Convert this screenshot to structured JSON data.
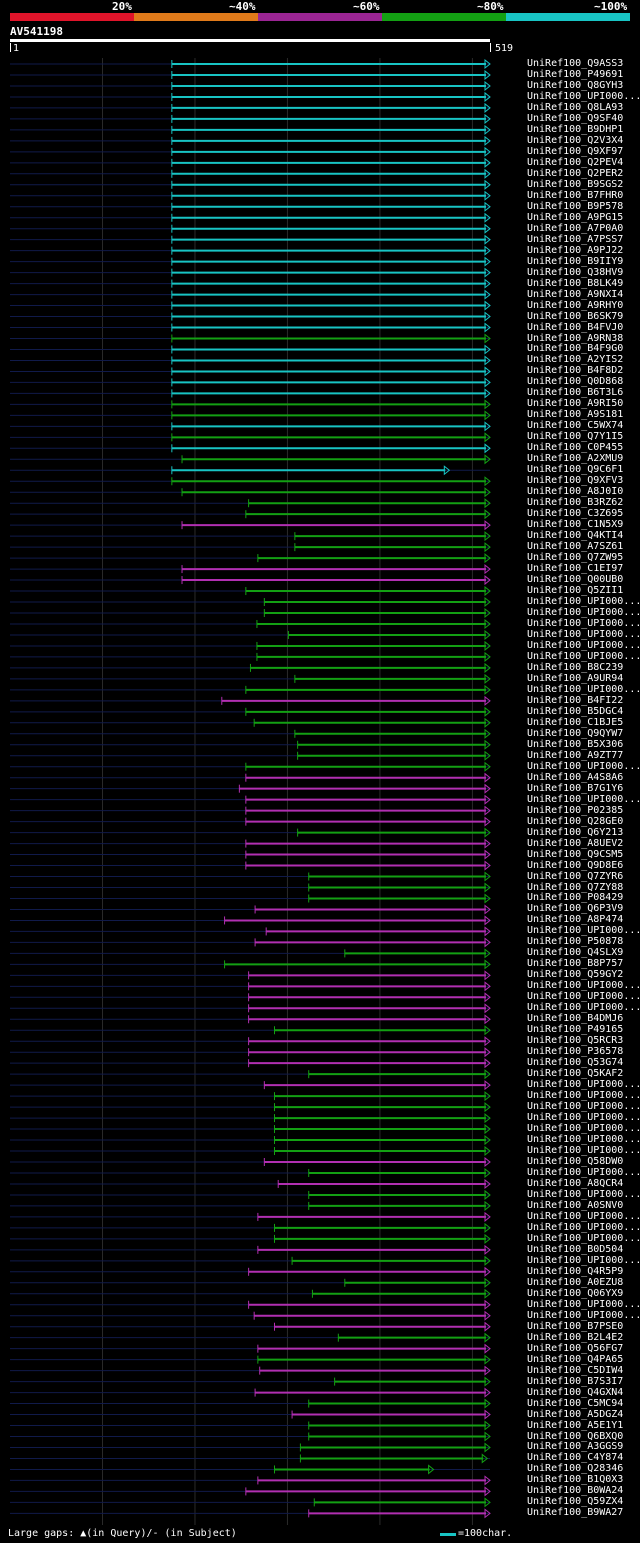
{
  "legend": {
    "labels": [
      "20%",
      "~40%",
      "~60%",
      "~80%",
      "~100%"
    ],
    "colors": [
      "#e0142a",
      "#e07a1a",
      "#9b2594",
      "#13a013",
      "#18c4c4"
    ]
  },
  "query": {
    "id": "AV541198",
    "start": "1",
    "end": "519",
    "length": 519
  },
  "footer": {
    "gaps_text": "Large gaps: ▲(in Query)/- (in Subject)",
    "scale_text": "=100char."
  },
  "hits": [
    {
      "label": "UniRef100_Q9ASS3",
      "start": 175,
      "end": 519,
      "color": "cyan"
    },
    {
      "label": "UniRef100_P49691",
      "start": 175,
      "end": 519,
      "color": "cyan"
    },
    {
      "label": "UniRef100_Q8GYH3",
      "start": 175,
      "end": 519,
      "color": "cyan"
    },
    {
      "label": "UniRef100_UPI000...",
      "start": 175,
      "end": 519,
      "color": "cyan"
    },
    {
      "label": "UniRef100_Q8LA93",
      "start": 175,
      "end": 519,
      "color": "cyan"
    },
    {
      "label": "UniRef100_Q9SF40",
      "start": 175,
      "end": 519,
      "color": "cyan"
    },
    {
      "label": "UniRef100_B9DHP1",
      "start": 175,
      "end": 519,
      "color": "cyan"
    },
    {
      "label": "UniRef100_Q2V3X4",
      "start": 175,
      "end": 519,
      "color": "cyan"
    },
    {
      "label": "UniRef100_Q9XF97",
      "start": 175,
      "end": 519,
      "color": "cyan"
    },
    {
      "label": "UniRef100_Q2PEV4",
      "start": 175,
      "end": 519,
      "color": "cyan"
    },
    {
      "label": "UniRef100_Q2PER2",
      "start": 175,
      "end": 519,
      "color": "cyan"
    },
    {
      "label": "UniRef100_B9SGS2",
      "start": 175,
      "end": 519,
      "color": "cyan"
    },
    {
      "label": "UniRef100_B7FHR0",
      "start": 175,
      "end": 519,
      "color": "cyan"
    },
    {
      "label": "UniRef100_B9P578",
      "start": 175,
      "end": 519,
      "color": "cyan"
    },
    {
      "label": "UniRef100_A9PG15",
      "start": 175,
      "end": 519,
      "color": "cyan"
    },
    {
      "label": "UniRef100_A7P0A0",
      "start": 175,
      "end": 519,
      "color": "cyan"
    },
    {
      "label": "UniRef100_A7PSS7",
      "start": 175,
      "end": 519,
      "color": "cyan"
    },
    {
      "label": "UniRef100_A9PJ22",
      "start": 175,
      "end": 519,
      "color": "cyan"
    },
    {
      "label": "UniRef100_B9IIY9",
      "start": 175,
      "end": 519,
      "color": "cyan"
    },
    {
      "label": "UniRef100_Q38HV9",
      "start": 175,
      "end": 519,
      "color": "cyan"
    },
    {
      "label": "UniRef100_B8LK49",
      "start": 175,
      "end": 519,
      "color": "cyan"
    },
    {
      "label": "UniRef100_A9NXI4",
      "start": 175,
      "end": 519,
      "color": "cyan"
    },
    {
      "label": "UniRef100_A9RHY0",
      "start": 175,
      "end": 519,
      "color": "cyan"
    },
    {
      "label": "UniRef100_B6SK79",
      "start": 175,
      "end": 519,
      "color": "cyan"
    },
    {
      "label": "UniRef100_B4FVJ0",
      "start": 175,
      "end": 519,
      "color": "cyan"
    },
    {
      "label": "UniRef100_A9RN38",
      "start": 175,
      "end": 519,
      "color": "green"
    },
    {
      "label": "UniRef100_B4F9G0",
      "start": 175,
      "end": 519,
      "color": "cyan"
    },
    {
      "label": "UniRef100_A2YIS2",
      "start": 175,
      "end": 519,
      "color": "cyan"
    },
    {
      "label": "UniRef100_B4F8D2",
      "start": 175,
      "end": 519,
      "color": "cyan"
    },
    {
      "label": "UniRef100_Q0D868",
      "start": 175,
      "end": 519,
      "color": "cyan"
    },
    {
      "label": "UniRef100_B6T3L6",
      "start": 175,
      "end": 519,
      "color": "cyan"
    },
    {
      "label": "UniRef100_A9RI50",
      "start": 175,
      "end": 519,
      "color": "green"
    },
    {
      "label": "UniRef100_A9S181",
      "start": 175,
      "end": 519,
      "color": "green"
    },
    {
      "label": "UniRef100_C5WX74",
      "start": 175,
      "end": 519,
      "color": "cyan"
    },
    {
      "label": "UniRef100_Q7Y1I5",
      "start": 175,
      "end": 519,
      "color": "green"
    },
    {
      "label": "UniRef100_C0P455",
      "start": 175,
      "end": 519,
      "color": "cyan"
    },
    {
      "label": "UniRef100_A2XMU9",
      "start": 186,
      "end": 519,
      "color": "green"
    },
    {
      "label": "UniRef100_Q9C6F1",
      "start": 175,
      "end": 475,
      "color": "cyan"
    },
    {
      "label": "UniRef100_Q9XFV3",
      "start": 175,
      "end": 519,
      "color": "green"
    },
    {
      "label": "UniRef100_A8J0I0",
      "start": 186,
      "end": 519,
      "color": "green"
    },
    {
      "label": "UniRef100_B3RZ62",
      "start": 258,
      "end": 519,
      "color": "green"
    },
    {
      "label": "UniRef100_C3Z695",
      "start": 255,
      "end": 519,
      "color": "green"
    },
    {
      "label": "UniRef100_C1N5X9",
      "start": 186,
      "end": 519,
      "color": "magenta"
    },
    {
      "label": "UniRef100_Q4KTI4",
      "start": 308,
      "end": 519,
      "color": "green"
    },
    {
      "label": "UniRef100_A7SZ61",
      "start": 308,
      "end": 519,
      "color": "green"
    },
    {
      "label": "UniRef100_Q7ZW95",
      "start": 268,
      "end": 519,
      "color": "green"
    },
    {
      "label": "UniRef100_C1EI97",
      "start": 186,
      "end": 519,
      "color": "magenta"
    },
    {
      "label": "UniRef100_Q00UB0",
      "start": 186,
      "end": 519,
      "color": "magenta"
    },
    {
      "label": "UniRef100_Q5ZII1",
      "start": 255,
      "end": 519,
      "color": "green"
    },
    {
      "label": "UniRef100_UPI000...",
      "start": 275,
      "end": 519,
      "color": "green"
    },
    {
      "label": "UniRef100_UPI000...",
      "start": 275,
      "end": 519,
      "color": "green"
    },
    {
      "label": "UniRef100_UPI000...",
      "start": 267,
      "end": 519,
      "color": "green"
    },
    {
      "label": "UniRef100_UPI000...",
      "start": 301,
      "end": 519,
      "color": "green"
    },
    {
      "label": "UniRef100_UPI000...",
      "start": 267,
      "end": 519,
      "color": "green"
    },
    {
      "label": "UniRef100_UPI000...",
      "start": 267,
      "end": 519,
      "color": "green"
    },
    {
      "label": "UniRef100_B8C239",
      "start": 260,
      "end": 519,
      "color": "green"
    },
    {
      "label": "UniRef100_A9UR94",
      "start": 308,
      "end": 519,
      "color": "green"
    },
    {
      "label": "UniRef100_UPI000...",
      "start": 255,
      "end": 519,
      "color": "green"
    },
    {
      "label": "UniRef100_B4FI22",
      "start": 229,
      "end": 519,
      "color": "magenta"
    },
    {
      "label": "UniRef100_B5DGC4",
      "start": 255,
      "end": 519,
      "color": "green"
    },
    {
      "label": "UniRef100_C1BJE5",
      "start": 264,
      "end": 519,
      "color": "green"
    },
    {
      "label": "UniRef100_Q9QYW7",
      "start": 308,
      "end": 519,
      "color": "green"
    },
    {
      "label": "UniRef100_B5X306",
      "start": 311,
      "end": 519,
      "color": "green"
    },
    {
      "label": "UniRef100_A9ZT77",
      "start": 311,
      "end": 519,
      "color": "green"
    },
    {
      "label": "UniRef100_UPI000...",
      "start": 255,
      "end": 519,
      "color": "green"
    },
    {
      "label": "UniRef100_A4S8A6",
      "start": 255,
      "end": 519,
      "color": "magenta"
    },
    {
      "label": "UniRef100_B7G1Y6",
      "start": 248,
      "end": 519,
      "color": "magenta"
    },
    {
      "label": "UniRef100_UPI000...",
      "start": 255,
      "end": 519,
      "color": "magenta"
    },
    {
      "label": "UniRef100_P02385",
      "start": 255,
      "end": 519,
      "color": "magenta"
    },
    {
      "label": "UniRef100_Q28GE0",
      "start": 255,
      "end": 519,
      "color": "magenta"
    },
    {
      "label": "UniRef100_Q6Y213",
      "start": 311,
      "end": 519,
      "color": "green"
    },
    {
      "label": "UniRef100_A8UEV2",
      "start": 255,
      "end": 519,
      "color": "magenta"
    },
    {
      "label": "UniRef100_Q9CSM5",
      "start": 255,
      "end": 519,
      "color": "magenta"
    },
    {
      "label": "UniRef100_Q9D8E6",
      "start": 255,
      "end": 519,
      "color": "magenta"
    },
    {
      "label": "UniRef100_Q7ZYR6",
      "start": 323,
      "end": 519,
      "color": "green"
    },
    {
      "label": "UniRef100_Q7ZY88",
      "start": 323,
      "end": 519,
      "color": "green"
    },
    {
      "label": "UniRef100_P08429",
      "start": 323,
      "end": 519,
      "color": "green"
    },
    {
      "label": "UniRef100_Q6P3V9",
      "start": 265,
      "end": 519,
      "color": "magenta"
    },
    {
      "label": "UniRef100_A8P474",
      "start": 232,
      "end": 519,
      "color": "magenta"
    },
    {
      "label": "UniRef100_UPI000...",
      "start": 277,
      "end": 519,
      "color": "magenta"
    },
    {
      "label": "UniRef100_P50878",
      "start": 265,
      "end": 519,
      "color": "magenta"
    },
    {
      "label": "UniRef100_Q4SLX9",
      "start": 362,
      "end": 519,
      "color": "green"
    },
    {
      "label": "UniRef100_B8P757",
      "start": 232,
      "end": 519,
      "color": "green"
    },
    {
      "label": "UniRef100_Q59GY2",
      "start": 258,
      "end": 519,
      "color": "magenta"
    },
    {
      "label": "UniRef100_UPI000...",
      "start": 258,
      "end": 519,
      "color": "magenta"
    },
    {
      "label": "UniRef100_UPI000...",
      "start": 258,
      "end": 519,
      "color": "magenta"
    },
    {
      "label": "UniRef100_UPI000...",
      "start": 258,
      "end": 519,
      "color": "magenta"
    },
    {
      "label": "UniRef100_B4DMJ6",
      "start": 258,
      "end": 519,
      "color": "magenta"
    },
    {
      "label": "UniRef100_P49165",
      "start": 286,
      "end": 519,
      "color": "green"
    },
    {
      "label": "UniRef100_Q5RCR3",
      "start": 258,
      "end": 519,
      "color": "magenta"
    },
    {
      "label": "UniRef100_P36578",
      "start": 258,
      "end": 519,
      "color": "magenta"
    },
    {
      "label": "UniRef100_Q53G74",
      "start": 258,
      "end": 519,
      "color": "magenta"
    },
    {
      "label": "UniRef100_Q5KAF2",
      "start": 323,
      "end": 519,
      "color": "green"
    },
    {
      "label": "UniRef100_UPI000...",
      "start": 275,
      "end": 519,
      "color": "magenta"
    },
    {
      "label": "UniRef100_UPI000...",
      "start": 286,
      "end": 519,
      "color": "green"
    },
    {
      "label": "UniRef100_UPI000...",
      "start": 286,
      "end": 519,
      "color": "green"
    },
    {
      "label": "UniRef100_UPI000...",
      "start": 286,
      "end": 519,
      "color": "green"
    },
    {
      "label": "UniRef100_UPI000...",
      "start": 286,
      "end": 519,
      "color": "green"
    },
    {
      "label": "UniRef100_UPI000...",
      "start": 286,
      "end": 519,
      "color": "green"
    },
    {
      "label": "UniRef100_UPI000...",
      "start": 286,
      "end": 519,
      "color": "green"
    },
    {
      "label": "UniRef100_Q58DW0",
      "start": 275,
      "end": 519,
      "color": "magenta"
    },
    {
      "label": "UniRef100_UPI000...",
      "start": 323,
      "end": 519,
      "color": "green"
    },
    {
      "label": "UniRef100_A8QCR4",
      "start": 290,
      "end": 519,
      "color": "magenta"
    },
    {
      "label": "UniRef100_UPI000...",
      "start": 323,
      "end": 519,
      "color": "green"
    },
    {
      "label": "UniRef100_A0SNV0",
      "start": 323,
      "end": 519,
      "color": "green"
    },
    {
      "label": "UniRef100_UPI000...",
      "start": 268,
      "end": 519,
      "color": "magenta"
    },
    {
      "label": "UniRef100_UPI000...",
      "start": 286,
      "end": 519,
      "color": "green"
    },
    {
      "label": "UniRef100_UPI000...",
      "start": 286,
      "end": 519,
      "color": "green"
    },
    {
      "label": "UniRef100_B0D504",
      "start": 268,
      "end": 519,
      "color": "magenta"
    },
    {
      "label": "UniRef100_UPI000...",
      "start": 305,
      "end": 519,
      "color": "green"
    },
    {
      "label": "UniRef100_Q4R5P9",
      "start": 258,
      "end": 519,
      "color": "magenta"
    },
    {
      "label": "UniRef100_A0EZU8",
      "start": 362,
      "end": 519,
      "color": "green"
    },
    {
      "label": "UniRef100_Q06YX9",
      "start": 327,
      "end": 519,
      "color": "green"
    },
    {
      "label": "UniRef100_UPI000...",
      "start": 258,
      "end": 519,
      "color": "magenta"
    },
    {
      "label": "UniRef100_UPI000...",
      "start": 264,
      "end": 519,
      "color": "magenta"
    },
    {
      "label": "UniRef100_B7PSE0",
      "start": 286,
      "end": 519,
      "color": "magenta"
    },
    {
      "label": "UniRef100_B2L4E2",
      "start": 355,
      "end": 519,
      "color": "green"
    },
    {
      "label": "UniRef100_Q56FG7",
      "start": 268,
      "end": 519,
      "color": "magenta"
    },
    {
      "label": "UniRef100_Q4PA65",
      "start": 268,
      "end": 519,
      "color": "green"
    },
    {
      "label": "UniRef100_C5DIW4",
      "start": 270,
      "end": 519,
      "color": "magenta"
    },
    {
      "label": "UniRef100_B7S3I7",
      "start": 351,
      "end": 519,
      "color": "green"
    },
    {
      "label": "UniRef100_Q4GXN4",
      "start": 265,
      "end": 519,
      "color": "magenta"
    },
    {
      "label": "UniRef100_C5MC94",
      "start": 323,
      "end": 519,
      "color": "green"
    },
    {
      "label": "UniRef100_A5DGZ4",
      "start": 305,
      "end": 519,
      "color": "magenta"
    },
    {
      "label": "UniRef100_A5E1Y1",
      "start": 323,
      "end": 519,
      "color": "green"
    },
    {
      "label": "UniRef100_Q6BXQ0",
      "start": 323,
      "end": 519,
      "color": "green"
    },
    {
      "label": "UniRef100_A3GGS9",
      "start": 314,
      "end": 519,
      "color": "green"
    },
    {
      "label": "UniRef100_C4Y874",
      "start": 314,
      "end": 516,
      "color": "green"
    },
    {
      "label": "UniRef100_Q28346",
      "start": 286,
      "end": 458,
      "color": "green"
    },
    {
      "label": "UniRef100_B1Q0X3",
      "start": 268,
      "end": 519,
      "color": "magenta"
    },
    {
      "label": "UniRef100_B0WA24",
      "start": 255,
      "end": 519,
      "color": "magenta"
    },
    {
      "label": "UniRef100_Q59ZX4",
      "start": 329,
      "end": 519,
      "color": "green"
    },
    {
      "label": "UniRef100_B9WA27",
      "start": 323,
      "end": 519,
      "color": "magenta"
    }
  ]
}
